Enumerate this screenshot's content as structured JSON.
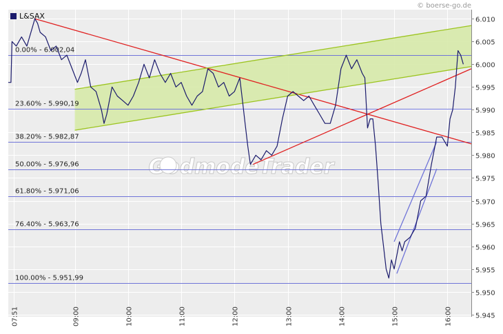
{
  "watermark_text": "© boerse-go.de",
  "brand_watermark": "GodmodeTrader",
  "colors": {
    "background": "#ffffff",
    "plot_background": "#ededed",
    "grid": "#ffffff",
    "price_line": "#1a1a6b",
    "fib_line": "#6f74d8",
    "trend_red": "#e02020",
    "channel_green": "#9cc41f",
    "channel_fill": "#d5e9a5",
    "wedge_blue": "#6f74d8",
    "axis_text": "#333333"
  },
  "chart_data": {
    "type": "line",
    "title": "",
    "legend": [
      {
        "name": "L&SAX",
        "color": "#1a1a6b"
      }
    ],
    "legend_position": "top-left",
    "xlabel": "",
    "ylabel": "",
    "x_ticks": [
      "07:51",
      "09:00",
      "10:00",
      "11:00",
      "12:00",
      "13:00",
      "14:00",
      "15:00",
      "16:00"
    ],
    "x_tick_hours": [
      7.85,
      9,
      10,
      11,
      12,
      13,
      14,
      15,
      16
    ],
    "y_ticks": [
      "5.945",
      "5.950",
      "5.955",
      "5.960",
      "5.965",
      "5.970",
      "5.975",
      "5.980",
      "5.985",
      "5.990",
      "5.995",
      "6.000",
      "6.005",
      "6.010"
    ],
    "y_tick_values": [
      5945,
      5950,
      5955,
      5960,
      5965,
      5970,
      5975,
      5980,
      5985,
      5990,
      5995,
      6000,
      6005,
      6010
    ],
    "xlim": [
      7.75,
      16.45
    ],
    "ylim": [
      5944.5,
      6012
    ],
    "grid": true,
    "series": [
      {
        "name": "L&SAX",
        "points": [
          [
            7.75,
            5996
          ],
          [
            7.8,
            5996
          ],
          [
            7.82,
            6005
          ],
          [
            7.9,
            6004
          ],
          [
            8.0,
            6006
          ],
          [
            8.1,
            6004
          ],
          [
            8.2,
            6008
          ],
          [
            8.25,
            6010
          ],
          [
            8.3,
            6009
          ],
          [
            8.35,
            6007
          ],
          [
            8.45,
            6006
          ],
          [
            8.55,
            6003
          ],
          [
            8.65,
            6004
          ],
          [
            8.75,
            6001
          ],
          [
            8.85,
            6002
          ],
          [
            8.95,
            5999
          ],
          [
            9.05,
            5996
          ],
          [
            9.12,
            5998
          ],
          [
            9.2,
            6001
          ],
          [
            9.3,
            5995
          ],
          [
            9.4,
            5994
          ],
          [
            9.5,
            5990
          ],
          [
            9.55,
            5987
          ],
          [
            9.6,
            5989
          ],
          [
            9.7,
            5995
          ],
          [
            9.8,
            5993
          ],
          [
            9.9,
            5992
          ],
          [
            10.0,
            5991
          ],
          [
            10.1,
            5993
          ],
          [
            10.2,
            5996
          ],
          [
            10.3,
            6000
          ],
          [
            10.4,
            5997
          ],
          [
            10.5,
            6001
          ],
          [
            10.6,
            5998
          ],
          [
            10.7,
            5996
          ],
          [
            10.8,
            5998
          ],
          [
            10.9,
            5995
          ],
          [
            11.0,
            5996
          ],
          [
            11.1,
            5993
          ],
          [
            11.2,
            5991
          ],
          [
            11.3,
            5993
          ],
          [
            11.4,
            5994
          ],
          [
            11.5,
            5999
          ],
          [
            11.6,
            5998
          ],
          [
            11.7,
            5995
          ],
          [
            11.8,
            5996
          ],
          [
            11.9,
            5993
          ],
          [
            12.0,
            5994
          ],
          [
            12.1,
            5997
          ],
          [
            12.15,
            5992
          ],
          [
            12.2,
            5987
          ],
          [
            12.25,
            5982
          ],
          [
            12.3,
            5978
          ],
          [
            12.4,
            5980
          ],
          [
            12.5,
            5979
          ],
          [
            12.6,
            5981
          ],
          [
            12.7,
            5980
          ],
          [
            12.8,
            5982
          ],
          [
            12.9,
            5988
          ],
          [
            13.0,
            5993
          ],
          [
            13.1,
            5994
          ],
          [
            13.2,
            5993
          ],
          [
            13.3,
            5992
          ],
          [
            13.4,
            5993
          ],
          [
            13.5,
            5991
          ],
          [
            13.6,
            5989
          ],
          [
            13.7,
            5987
          ],
          [
            13.8,
            5987
          ],
          [
            13.9,
            5991
          ],
          [
            14.0,
            5999
          ],
          [
            14.1,
            6002
          ],
          [
            14.2,
            5999
          ],
          [
            14.3,
            6001
          ],
          [
            14.4,
            5998
          ],
          [
            14.45,
            5997
          ],
          [
            14.5,
            5986
          ],
          [
            14.55,
            5988
          ],
          [
            14.6,
            5988
          ],
          [
            14.65,
            5982
          ],
          [
            14.7,
            5974
          ],
          [
            14.75,
            5965
          ],
          [
            14.8,
            5960
          ],
          [
            14.85,
            5955
          ],
          [
            14.9,
            5953
          ],
          [
            14.95,
            5957
          ],
          [
            15.0,
            5955
          ],
          [
            15.05,
            5958
          ],
          [
            15.1,
            5961
          ],
          [
            15.15,
            5959
          ],
          [
            15.2,
            5961
          ],
          [
            15.3,
            5962
          ],
          [
            15.4,
            5964
          ],
          [
            15.5,
            5970
          ],
          [
            15.6,
            5971
          ],
          [
            15.7,
            5978
          ],
          [
            15.8,
            5984
          ],
          [
            15.9,
            5984
          ],
          [
            16.0,
            5982
          ],
          [
            16.05,
            5988
          ],
          [
            16.1,
            5990
          ],
          [
            16.15,
            5995
          ],
          [
            16.2,
            6003
          ],
          [
            16.25,
            6002
          ],
          [
            16.3,
            6000
          ]
        ]
      }
    ],
    "fibonacci_levels": [
      {
        "label": "0.00% - 6.002,04",
        "value": 6002.04
      },
      {
        "label": "23.60% - 5.990,19",
        "value": 5990.19
      },
      {
        "label": "38.20% - 5.982,87",
        "value": 5982.87
      },
      {
        "label": "50.00% - 5.976,96",
        "value": 5976.96
      },
      {
        "label": "61.80% - 5.971,06",
        "value": 5971.06
      },
      {
        "label": "76.40% - 5.963,76",
        "value": 5963.76
      },
      {
        "label": "100.00% - 5.951,99",
        "value": 5951.99
      }
    ],
    "trendlines": [
      {
        "name": "red-falling-trendline",
        "color": "#e02020",
        "from": [
          8.25,
          6010
        ],
        "to": [
          16.45,
          5982.5
        ]
      },
      {
        "name": "red-rising-trendline",
        "color": "#e02020",
        "from": [
          12.35,
          5978
        ],
        "to": [
          16.45,
          5999
        ]
      },
      {
        "name": "green-channel-upper",
        "color": "#9cc41f",
        "from": [
          9.0,
          5994.5
        ],
        "to": [
          16.45,
          6008.5
        ]
      },
      {
        "name": "green-channel-lower",
        "color": "#9cc41f",
        "from": [
          9.0,
          5985.5
        ],
        "to": [
          16.45,
          5999.5
        ]
      },
      {
        "name": "blue-wedge-upper",
        "color": "#6f74d8",
        "from": [
          15.0,
          5961
        ],
        "to": [
          15.8,
          5983
        ]
      },
      {
        "name": "blue-wedge-lower",
        "color": "#6f74d8",
        "from": [
          15.05,
          5954
        ],
        "to": [
          15.8,
          5977
        ]
      }
    ]
  }
}
